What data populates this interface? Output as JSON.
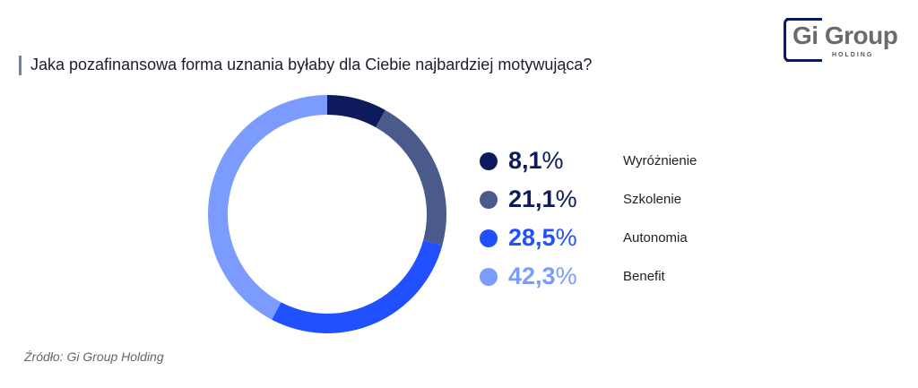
{
  "title": "Jaka pozafinansowa forma uznania byłaby dla Ciebie najbardziej motywująca?",
  "logo": {
    "text": "Gi Group",
    "sub": "HOLDING"
  },
  "source": "Źródło: Gi Group Holding",
  "chart_data": {
    "type": "pie",
    "variant": "donut",
    "start": "top, clockwise",
    "legend_position": "right",
    "slices": [
      {
        "label": "Wyróżnienie",
        "value": 8.1,
        "display_number": "8,1",
        "color": "#0d1a5c",
        "text_color": "#0d1a5c"
      },
      {
        "label": "Szkolenie",
        "value": 21.1,
        "display_number": "21,1",
        "color": "#4a5a8a",
        "text_color": "#0d1a5c"
      },
      {
        "label": "Autonomia",
        "value": 28.5,
        "display_number": "28,5",
        "color": "#2151ff",
        "text_color": "#2151ff"
      },
      {
        "label": "Benefit",
        "value": 42.3,
        "display_number": "42,3",
        "color": "#7b9bff",
        "text_color": "#7b9bff"
      }
    ],
    "percent_sign": "%"
  }
}
